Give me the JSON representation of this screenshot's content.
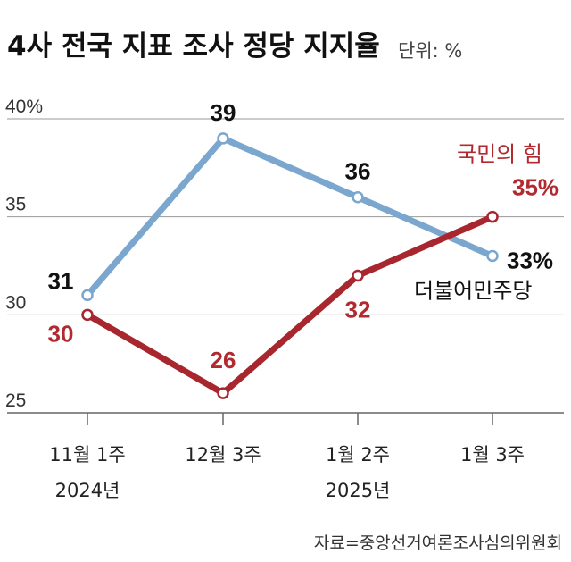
{
  "chart_data": {
    "type": "line",
    "title": "4사 전국 지표 조사 정당 지지율",
    "unit_label": "단위: %",
    "source": "자료=중앙선거여론조사심의위원회",
    "categories": [
      "11월 1주",
      "12월 3주",
      "1월 2주",
      "1월 3주"
    ],
    "year_labels": [
      "2024년",
      "",
      "2025년",
      ""
    ],
    "ylim": [
      25,
      40
    ],
    "yticks": [
      25,
      30,
      35,
      40
    ],
    "ytick_labels": [
      "25",
      "30",
      "35",
      "40%"
    ],
    "grid": true,
    "series": [
      {
        "name": "더불어민주당",
        "color": "#7BA7CF",
        "values": [
          31,
          39,
          36,
          33
        ],
        "labels": [
          "31",
          "39",
          "36",
          "33%"
        ],
        "label_color": "#111111"
      },
      {
        "name": "국민의 힘",
        "color": "#A8262E",
        "values": [
          30,
          26,
          32,
          35
        ],
        "labels": [
          "30",
          "26",
          "32",
          "35%"
        ],
        "label_color": "#B02A2F"
      }
    ]
  }
}
